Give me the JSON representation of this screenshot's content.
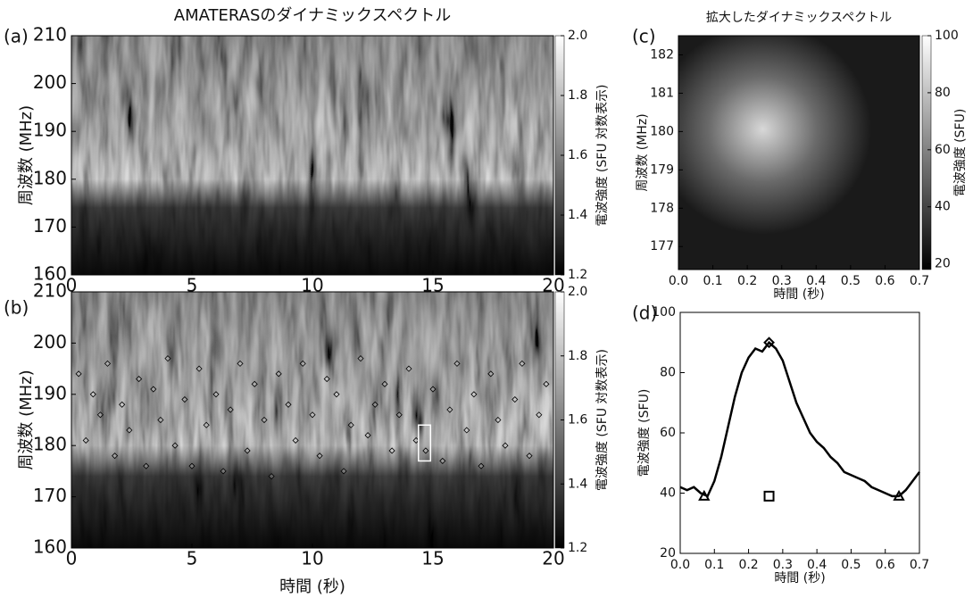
{
  "chart_data": [
    {
      "type": "heatmap",
      "label": "(a)",
      "title": "AMATERASのダイナミックスペクトル",
      "ylabel": "周波数 (MHz)",
      "xlim": [
        0,
        20
      ],
      "xticks": [
        0,
        5,
        10,
        15,
        20
      ],
      "ylim": [
        160,
        210
      ],
      "yticks": [
        160,
        170,
        180,
        190,
        200,
        210
      ],
      "clabel": "電波強度 (SFU 対数表示)",
      "clim": [
        1.2,
        2.0
      ],
      "cticks": [
        1.2,
        1.4,
        1.6,
        1.8,
        {
          "value": 2,
          "label": "2.0"
        }
      ]
    },
    {
      "type": "heatmap",
      "label": "(b)",
      "xlabel": "時間 (秒)",
      "ylabel": "周波数 (MHz)",
      "xlim": [
        0,
        20
      ],
      "xticks": [
        0,
        5,
        10,
        15,
        20
      ],
      "ylim": [
        160,
        210
      ],
      "yticks": [
        160,
        170,
        180,
        190,
        200,
        210
      ],
      "clabel": "電波強度 (SFU 対数表示)",
      "clim": [
        1.2,
        2.0
      ],
      "cticks": [
        1.2,
        1.4,
        1.6,
        1.8,
        {
          "value": 2,
          "label": "2.0"
        }
      ],
      "series": [
        {
          "marker": "diamond",
          "color": "#000000",
          "x": [
            0.3,
            0.6,
            0.9,
            1.2,
            1.5,
            1.8,
            2.1,
            2.4,
            2.8,
            3.1,
            3.4,
            3.7,
            4.0,
            4.3,
            4.7,
            5.0,
            5.3,
            5.6,
            6.0,
            6.3,
            6.6,
            7.0,
            7.3,
            7.6,
            8.0,
            8.3,
            8.6,
            9.0,
            9.3,
            9.6,
            10.0,
            10.3,
            10.6,
            11.0,
            11.3,
            11.6,
            12.0,
            12.3,
            12.6,
            13.0,
            13.3,
            13.6,
            14.0,
            14.3,
            14.7,
            15.0,
            15.4,
            15.7,
            16.0,
            16.4,
            16.7,
            17.0,
            17.4,
            17.7,
            18.0,
            18.4,
            18.7,
            19.0,
            19.4,
            19.7
          ],
          "values": [
            194,
            181,
            190,
            186,
            196,
            178,
            188,
            183,
            193,
            176,
            191,
            185,
            197,
            180,
            189,
            176,
            195,
            184,
            190,
            175,
            187,
            196,
            179,
            192,
            185,
            174,
            194,
            188,
            181,
            196,
            186,
            178,
            193,
            190,
            175,
            184,
            197,
            182,
            188,
            192,
            179,
            186,
            195,
            181,
            179,
            191,
            177,
            187,
            196,
            183,
            190,
            176,
            194,
            185,
            180,
            189,
            196,
            178,
            186,
            192
          ]
        }
      ],
      "box": {
        "x": [
          14.4,
          14.9
        ],
        "y": [
          177,
          184
        ]
      }
    },
    {
      "type": "heatmap",
      "label": "(c)",
      "title": "拡大したダイナミックスペクトル",
      "xlabel": "時間 (秒)",
      "ylabel": "周波数 (MHz)",
      "xlim": [
        0,
        0.7
      ],
      "xticks": [
        {
          "value": 0,
          "label": "0.0"
        },
        0.1,
        0.2,
        0.3,
        0.4,
        0.5,
        0.6,
        0.7
      ],
      "ylim": [
        176.4,
        182.5
      ],
      "yticks": [
        177,
        178,
        179,
        180,
        181,
        182
      ],
      "clabel": "電波強度 (SFU)",
      "clim": [
        18,
        100
      ],
      "cticks": [
        20,
        40,
        60,
        80,
        100
      ]
    },
    {
      "type": "line",
      "label": "(d)",
      "xlabel": "時間 (秒)",
      "ylabel": "電波強度 (SFU)",
      "xlim": [
        0,
        0.7
      ],
      "xticks": [
        {
          "value": 0,
          "label": "0.0"
        },
        0.1,
        0.2,
        0.3,
        0.4,
        0.5,
        0.6,
        0.7
      ],
      "ylim": [
        20,
        100
      ],
      "yticks": [
        20,
        40,
        60,
        80,
        100
      ],
      "series": [
        {
          "marker": "line",
          "color": "#000000",
          "x": [
            0,
            0.02,
            0.04,
            0.06,
            0.08,
            0.1,
            0.12,
            0.14,
            0.16,
            0.18,
            0.2,
            0.22,
            0.24,
            0.26,
            0.28,
            0.3,
            0.32,
            0.34,
            0.36,
            0.38,
            0.4,
            0.42,
            0.44,
            0.46,
            0.48,
            0.5,
            0.52,
            0.54,
            0.56,
            0.58,
            0.6,
            0.62,
            0.64,
            0.66,
            0.68,
            0.7
          ],
          "values": [
            42,
            41,
            42,
            40,
            39,
            44,
            52,
            62,
            72,
            80,
            85,
            88,
            87,
            90,
            88,
            84,
            77,
            70,
            65,
            60,
            57,
            55,
            52,
            50,
            47,
            46,
            45,
            44,
            42,
            41,
            40,
            39,
            39,
            41,
            44,
            47
          ]
        },
        {
          "marker": "triangle",
          "color": "#000000",
          "x": [
            0.07,
            0.64
          ],
          "values": [
            39,
            39
          ]
        },
        {
          "marker": "diamond",
          "color": "#000000",
          "x": [
            0.26
          ],
          "values": [
            90
          ]
        },
        {
          "marker": "square",
          "color": "#000000",
          "x": [
            0.26
          ],
          "values": [
            39
          ]
        }
      ]
    }
  ]
}
